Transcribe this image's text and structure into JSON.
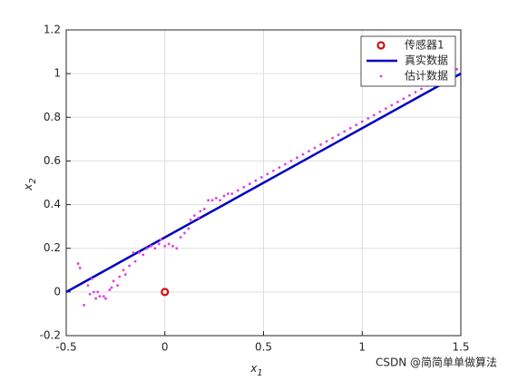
{
  "chart_data": {
    "type": "scatter",
    "xlabel": "x",
    "xlabel_sub": "1",
    "ylabel": "x",
    "ylabel_sub": "2",
    "xlim": [
      -0.5,
      1.5
    ],
    "ylim": [
      -0.2,
      1.2
    ],
    "xticks": [
      -0.5,
      0,
      0.5,
      1,
      1.5
    ],
    "yticks": [
      -0.2,
      0,
      0.2,
      0.4,
      0.6,
      0.8,
      1,
      1.2
    ],
    "grid": true,
    "legend": "upper right",
    "series": [
      {
        "name": "传感器1",
        "color": "#d01010",
        "style": "circle",
        "x": [
          0
        ],
        "values": [
          0
        ]
      },
      {
        "name": "真实数据",
        "color": "#0000c0",
        "style": "line",
        "x": [
          -0.5,
          1.5
        ],
        "values": [
          0,
          1
        ]
      },
      {
        "name": "估计数据",
        "color": "#e040e0",
        "style": "dot",
        "x": [
          -0.44,
          -0.43,
          -0.41,
          -0.39,
          -0.38,
          -0.37,
          -0.36,
          -0.35,
          -0.34,
          -0.33,
          -0.31,
          -0.3,
          -0.28,
          -0.27,
          -0.26,
          -0.24,
          -0.23,
          -0.21,
          -0.2,
          -0.18,
          -0.16,
          -0.15,
          -0.13,
          -0.11,
          -0.09,
          -0.07,
          -0.05,
          -0.03,
          -0.02,
          0.0,
          0.02,
          0.04,
          0.06,
          0.08,
          0.1,
          0.12,
          0.13,
          0.15,
          0.17,
          0.18,
          0.2,
          0.22,
          0.24,
          0.26,
          0.28,
          0.3,
          0.32,
          0.34,
          0.37,
          0.4,
          0.43,
          0.46,
          0.49,
          0.52,
          0.55,
          0.58,
          0.61,
          0.64,
          0.67,
          0.7,
          0.73,
          0.76,
          0.79,
          0.82,
          0.85,
          0.88,
          0.91,
          0.94,
          0.97,
          1.0,
          1.03,
          1.06,
          1.09,
          1.12,
          1.15,
          1.18,
          1.21,
          1.24,
          1.27,
          1.3,
          1.33,
          1.36,
          1.39,
          1.42,
          1.45,
          1.48
        ],
        "values": [
          0.13,
          0.11,
          -0.06,
          0.03,
          -0.01,
          0.06,
          0,
          -0.03,
          0,
          -0.02,
          -0.02,
          -0.03,
          0.01,
          0.02,
          0.05,
          0.03,
          0.07,
          0.1,
          0.08,
          0.12,
          0.18,
          0.14,
          0.18,
          0.17,
          0.2,
          0.21,
          0.2,
          0.22,
          0.24,
          0.21,
          0.22,
          0.21,
          0.2,
          0.25,
          0.27,
          0.29,
          0.33,
          0.35,
          0.34,
          0.37,
          0.38,
          0.42,
          0.42,
          0.43,
          0.42,
          0.44,
          0.45,
          0.45,
          0.465,
          0.48,
          0.495,
          0.51,
          0.525,
          0.54,
          0.555,
          0.57,
          0.585,
          0.6,
          0.615,
          0.63,
          0.645,
          0.66,
          0.675,
          0.69,
          0.705,
          0.72,
          0.735,
          0.75,
          0.765,
          0.78,
          0.795,
          0.81,
          0.825,
          0.84,
          0.855,
          0.87,
          0.885,
          0.9,
          0.915,
          0.93,
          0.945,
          0.96,
          0.975,
          0.99,
          1.005,
          1.02
        ]
      }
    ],
    "watermark": "CSDN @简简单单做算法"
  }
}
